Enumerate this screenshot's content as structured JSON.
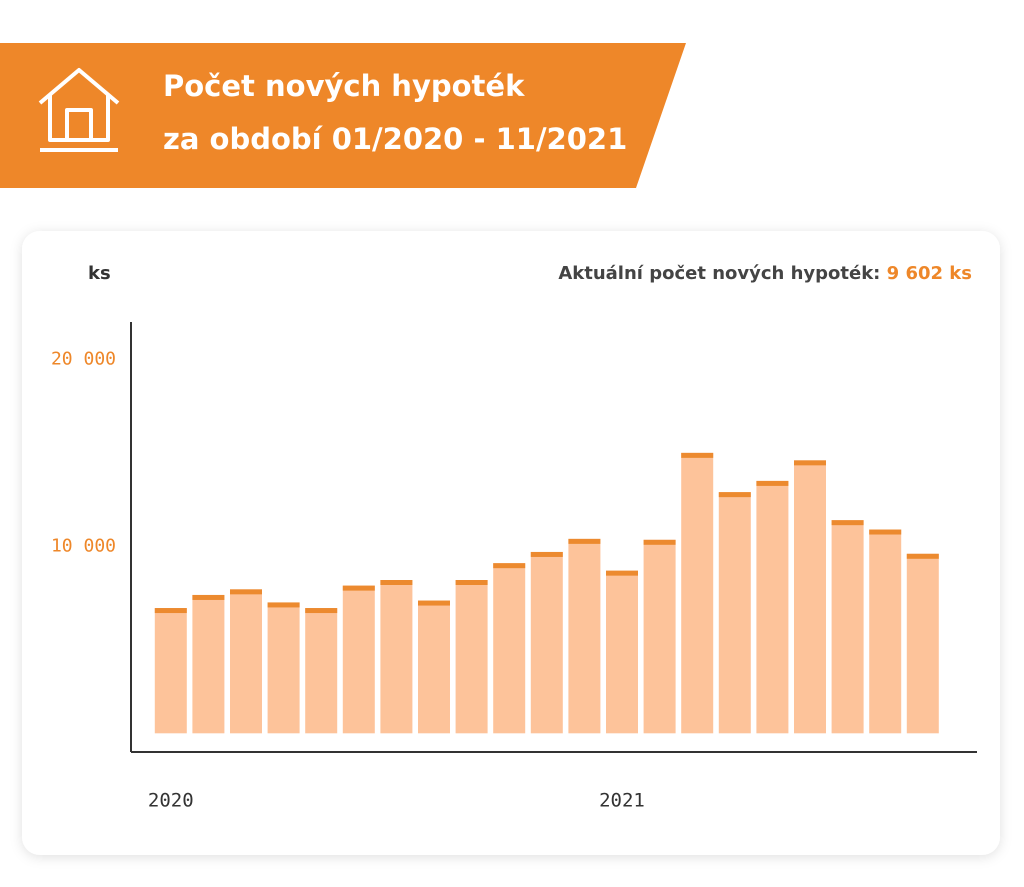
{
  "chart_data": {
    "type": "bar",
    "title": [
      "Počet nových hypoték",
      "za období 01/2020 - 11/2021"
    ],
    "y_label": "ks",
    "annotation": "Aktuální počet nových hypoték:",
    "annotation_value": "9 602 ks",
    "categories": [
      "2020",
      null,
      null,
      null,
      null,
      null,
      null,
      null,
      null,
      null,
      null,
      null,
      "2021",
      null,
      null,
      null,
      null,
      null,
      null,
      null,
      null
    ],
    "values": [
      6700,
      7400,
      7700,
      7000,
      6700,
      7900,
      8200,
      7100,
      8200,
      9100,
      9700,
      10400,
      8700,
      10350,
      15000,
      12900,
      13500,
      14600,
      11400,
      10900,
      9602
    ],
    "color": "#fdc39a",
    "cap_color": "#ec8a2f",
    "ylim": [
      -1000,
      22000
    ],
    "yticks": [
      {
        "value": 10000,
        "label": "10 000"
      },
      {
        "value": 20000,
        "label": "20 000"
      }
    ]
  }
}
